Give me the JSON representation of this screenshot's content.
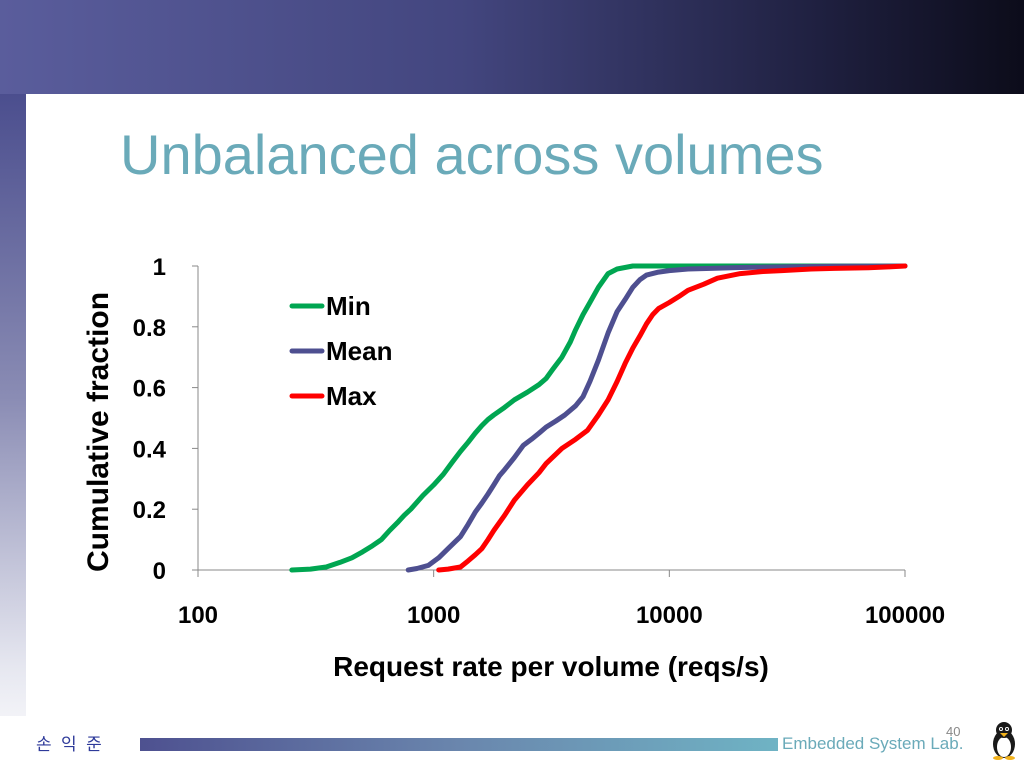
{
  "slide": {
    "title": "Unbalanced across volumes",
    "author": "손 익 준",
    "page_number": "40",
    "lab_name": "Embedded System Lab.",
    "title_color": "#6aaab9"
  },
  "chart_data": {
    "type": "line",
    "xscale": "log",
    "xlim": [
      100,
      100000
    ],
    "ylim": [
      0,
      1
    ],
    "xlabel": "Request rate per volume (reqs/s)",
    "ylabel": "Cumulative fraction",
    "xticks": [
      "100",
      "1000",
      "10000",
      "100000"
    ],
    "xtick_values": [
      100,
      1000,
      10000,
      100000
    ],
    "yticks": [
      "0",
      "0.2",
      "0.4",
      "0.6",
      "0.8",
      "1"
    ],
    "ytick_values": [
      0,
      0.2,
      0.4,
      0.6,
      0.8,
      1
    ],
    "grid": false,
    "legend_position": "upper-left",
    "series": [
      {
        "name": "Min",
        "color": "#00a651",
        "x": [
          250,
          300,
          350,
          400,
          450,
          500,
          550,
          600,
          650,
          700,
          750,
          800,
          900,
          1000,
          1100,
          1200,
          1300,
          1400,
          1500,
          1600,
          1700,
          1800,
          2000,
          2200,
          2500,
          2800,
          3000,
          3200,
          3500,
          3800,
          4000,
          4300,
          4600,
          5000,
          5500,
          6000,
          7000,
          8000,
          10000,
          20000,
          50000,
          100000
        ],
        "y": [
          0,
          0.003,
          0.01,
          0.025,
          0.04,
          0.06,
          0.08,
          0.1,
          0.13,
          0.155,
          0.18,
          0.2,
          0.245,
          0.28,
          0.315,
          0.355,
          0.39,
          0.42,
          0.45,
          0.475,
          0.495,
          0.51,
          0.535,
          0.56,
          0.585,
          0.61,
          0.63,
          0.66,
          0.7,
          0.75,
          0.79,
          0.84,
          0.88,
          0.93,
          0.975,
          0.99,
          1.0,
          1.0,
          1.0,
          1.0,
          1.0,
          1.0
        ]
      },
      {
        "name": "Mean",
        "color": "#4e4f90",
        "x": [
          780,
          850,
          950,
          1050,
          1150,
          1300,
          1400,
          1500,
          1600,
          1700,
          1800,
          1900,
          2000,
          2200,
          2400,
          2600,
          2800,
          3000,
          3300,
          3600,
          4000,
          4300,
          4600,
          5000,
          5500,
          6000,
          6500,
          7000,
          7500,
          8000,
          9000,
          10000,
          12000,
          15000,
          20000,
          30000,
          50000,
          100000
        ],
        "y": [
          0,
          0.005,
          0.015,
          0.04,
          0.07,
          0.11,
          0.15,
          0.19,
          0.22,
          0.25,
          0.28,
          0.31,
          0.33,
          0.37,
          0.41,
          0.43,
          0.45,
          0.47,
          0.49,
          0.51,
          0.54,
          0.57,
          0.62,
          0.69,
          0.78,
          0.85,
          0.89,
          0.93,
          0.955,
          0.97,
          0.98,
          0.985,
          0.99,
          0.992,
          0.995,
          0.997,
          0.999,
          1.0
        ]
      },
      {
        "name": "Max",
        "color": "#ff0000",
        "x": [
          1050,
          1150,
          1300,
          1400,
          1500,
          1600,
          1700,
          1800,
          2000,
          2200,
          2500,
          2800,
          3000,
          3500,
          4000,
          4500,
          5000,
          5500,
          6000,
          6500,
          7000,
          7500,
          8000,
          8500,
          9000,
          10000,
          11000,
          12000,
          14000,
          16000,
          20000,
          25000,
          30000,
          40000,
          50000,
          70000,
          85000,
          100000
        ],
        "y": [
          0,
          0.003,
          0.01,
          0.03,
          0.05,
          0.07,
          0.1,
          0.13,
          0.18,
          0.23,
          0.28,
          0.32,
          0.35,
          0.4,
          0.43,
          0.46,
          0.51,
          0.56,
          0.62,
          0.68,
          0.73,
          0.77,
          0.81,
          0.84,
          0.86,
          0.88,
          0.9,
          0.92,
          0.94,
          0.96,
          0.975,
          0.982,
          0.985,
          0.99,
          0.992,
          0.994,
          0.997,
          1.0
        ]
      }
    ]
  }
}
